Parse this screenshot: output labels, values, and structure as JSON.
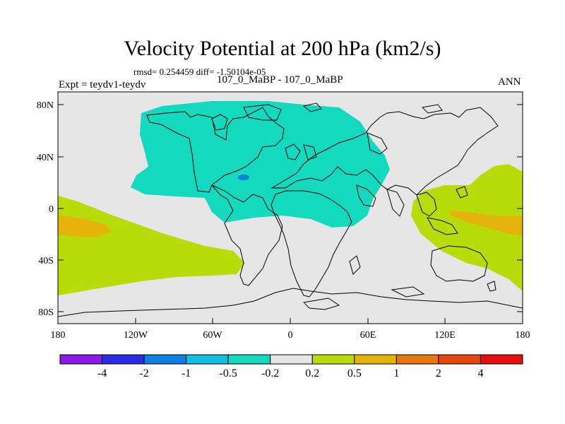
{
  "title": "Velocity Potential at 200 hPa (km2/s)",
  "stats": "rmsd= 0.254459 diff= -1.50104e-05",
  "expt": "Expt = teydv1-teydv",
  "cases": "107_0_MaBP - 107_0_MaBP",
  "season": "ANN",
  "lat_labels": [
    "80N",
    "40N",
    "0",
    "40S",
    "80S"
  ],
  "lon_labels": [
    "180",
    "120W",
    "60W",
    "0",
    "60E",
    "120E",
    "180"
  ],
  "colorbar": {
    "colors": [
      "#8a17e6",
      "#2b2be6",
      "#0d7fe0",
      "#13bde6",
      "#13d9bf",
      "#e6e6e6",
      "#b7dc0a",
      "#e6b30d",
      "#e6760d",
      "#e6450d",
      "#e60d0d"
    ],
    "labels": [
      "-4",
      "-2",
      "-1",
      "-0.5",
      "-0.2",
      "0.2",
      "0.5",
      "1",
      "2",
      "4"
    ]
  }
}
